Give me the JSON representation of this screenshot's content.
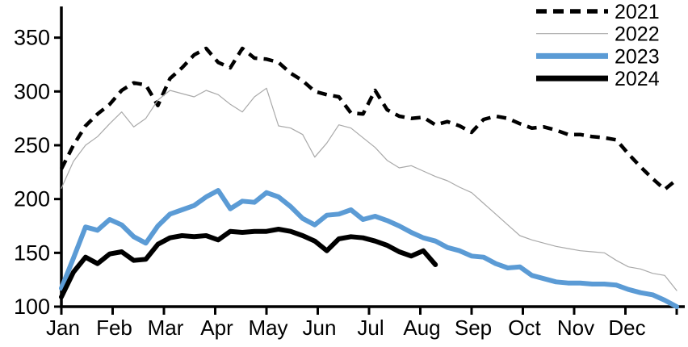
{
  "chart_data": {
    "type": "line",
    "title": "",
    "xlabel": "",
    "ylabel": "",
    "x_unit": "week",
    "categories_x": [
      "Jan",
      "Feb",
      "Mar",
      "Apr",
      "May",
      "Jun",
      "Jul",
      "Aug",
      "Sep",
      "Oct",
      "Nov",
      "Dec"
    ],
    "ylim": [
      100,
      378
    ],
    "yticks": [
      100,
      150,
      200,
      250,
      300,
      350
    ],
    "grid": false,
    "legend_position": "top-right",
    "axis_color": "#000000",
    "series": [
      {
        "name": "2021",
        "color": "#000000",
        "style": "dashed",
        "width": 4.5,
        "values": [
          228,
          250,
          268,
          279,
          288,
          301,
          308,
          306,
          287,
          312,
          322,
          334,
          340,
          327,
          322,
          340,
          331,
          330,
          327,
          317,
          310,
          300,
          297,
          295,
          280,
          279,
          301,
          283,
          277,
          275,
          276,
          269,
          272,
          268,
          262,
          274,
          277,
          275,
          270,
          266,
          267,
          264,
          260,
          260,
          258,
          257,
          255,
          242,
          230,
          219,
          209,
          218
        ]
      },
      {
        "name": "2022",
        "color": "#A9A9A9",
        "style": "solid",
        "width": 1.2,
        "values": [
          210,
          235,
          250,
          258,
          270,
          281,
          267,
          275,
          292,
          301,
          298,
          295,
          301,
          297,
          288,
          281,
          295,
          303,
          268,
          266,
          260,
          239,
          252,
          269,
          266,
          257,
          248,
          236,
          229,
          231,
          226,
          221,
          217,
          211,
          206,
          196,
          186,
          176,
          166,
          162,
          159,
          156,
          154,
          152,
          151,
          150,
          143,
          137,
          135,
          131,
          129,
          115
        ]
      },
      {
        "name": "2023",
        "color": "#5B9BD5",
        "style": "solid",
        "width": 6,
        "values": [
          117,
          145,
          174,
          171,
          181,
          176,
          165,
          159,
          175,
          186,
          190,
          194,
          202,
          208,
          191,
          198,
          197,
          206,
          202,
          193,
          182,
          176,
          185,
          186,
          190,
          181,
          184,
          180,
          175,
          169,
          164,
          161,
          155,
          152,
          147,
          146,
          140,
          136,
          137,
          129,
          126,
          123,
          122,
          122,
          121,
          121,
          120,
          116,
          113,
          111,
          106,
          100
        ]
      },
      {
        "name": "2024",
        "color": "#000000",
        "style": "solid",
        "width": 6,
        "values": [
          109,
          132,
          146,
          140,
          149,
          151,
          143,
          144,
          158,
          164,
          166,
          165,
          166,
          162,
          170,
          169,
          170,
          170,
          172,
          170,
          166,
          161,
          152,
          163,
          165,
          164,
          161,
          157,
          151,
          147,
          152,
          139
        ]
      }
    ]
  }
}
